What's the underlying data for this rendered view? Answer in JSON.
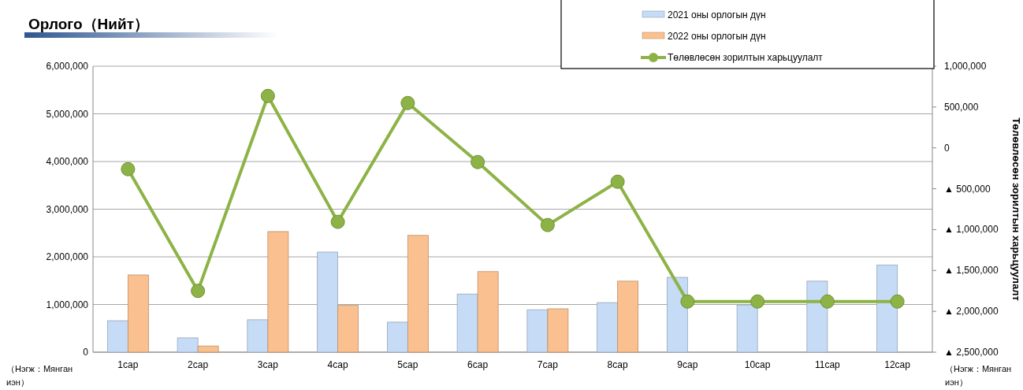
{
  "chart_data": {
    "type": "bar",
    "title": "Орлого（Нийт）",
    "categories": [
      "1сар",
      "2сар",
      "3сар",
      "4сар",
      "5сар",
      "6сар",
      "7сар",
      "8сар",
      "9сар",
      "10сар",
      "11сар",
      "12сар"
    ],
    "series": [
      {
        "name": "2021 оны орлогын дүн",
        "color": "#c6dbf5",
        "values": [
          660000,
          300000,
          680000,
          2100000,
          630000,
          1220000,
          890000,
          1040000,
          1570000,
          990000,
          1490000,
          1830000
        ]
      },
      {
        "name": "2022 оны орлогын дүн",
        "color": "#fac090",
        "values": [
          1620000,
          130000,
          2530000,
          980000,
          2450000,
          1690000,
          910000,
          1490000,
          null,
          null,
          null,
          null
        ]
      },
      {
        "name": "Төлөвлөсөн зорилтын харьцуулалт",
        "type": "line",
        "axis": "y2",
        "color": "#8db346",
        "marker": "circle",
        "values": [
          -260000,
          -1750000,
          636000,
          -905000,
          549000,
          -173000,
          -944000,
          -414000,
          -1880000,
          -1880000,
          -1880000,
          -1880000
        ]
      }
    ],
    "ylim": [
      0,
      6000000
    ],
    "yticks": [
      {
        "value": 0,
        "label": "0"
      },
      {
        "value": 1000000,
        "label": "1,000,000"
      },
      {
        "value": 2000000,
        "label": "2,000,000"
      },
      {
        "value": 3000000,
        "label": "3,000,000"
      },
      {
        "value": 4000000,
        "label": "4,000,000"
      },
      {
        "value": 5000000,
        "label": "5,000,000"
      },
      {
        "value": 6000000,
        "label": "6,000,000"
      }
    ],
    "y2lim": [
      -2500000,
      1000000
    ],
    "y2ticks": [
      {
        "value": 1000000,
        "label": "1,000,000"
      },
      {
        "value": 500000,
        "label": "500,000"
      },
      {
        "value": 0,
        "label": "0"
      },
      {
        "value": -500000,
        "label": "▲ 500,000"
      },
      {
        "value": -1000000,
        "label": "▲ 1,000,000"
      },
      {
        "value": -1500000,
        "label": "▲ 1,500,000"
      },
      {
        "value": -2000000,
        "label": "▲ 2,000,000"
      },
      {
        "value": -2500000,
        "label": "▲ 2,500,000"
      }
    ],
    "y2label": "Төлөвлөсөн зорилтын харьцуулалт",
    "annotations": [
      "（Нэгж：Мянган иэн）",
      "（Нэгж：Мянган иэн）"
    ],
    "grid": "y",
    "legend": "top right"
  }
}
